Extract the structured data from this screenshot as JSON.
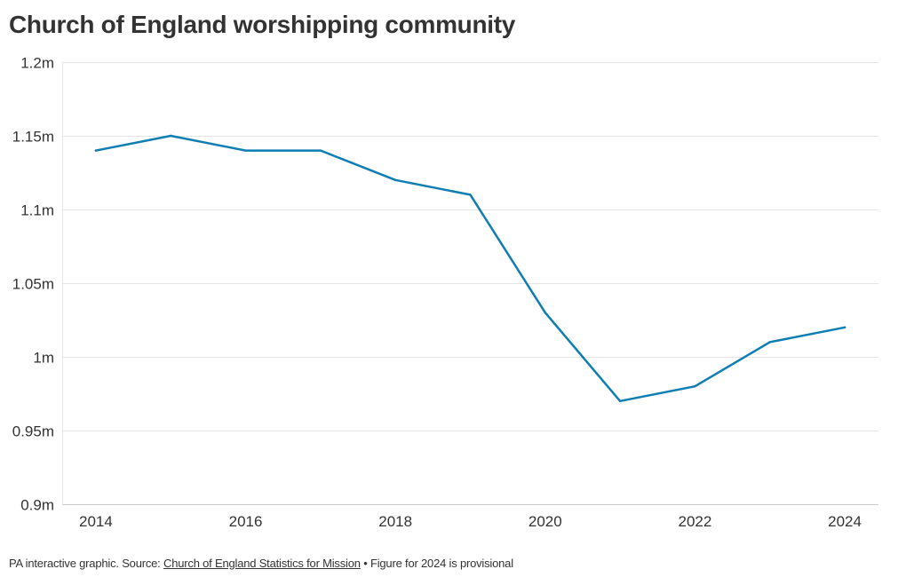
{
  "chart_data": {
    "type": "line",
    "title": "Church of England worshipping community",
    "xlabel": "",
    "ylabel": "",
    "x": [
      2014,
      2015,
      2016,
      2017,
      2018,
      2019,
      2020,
      2021,
      2022,
      2023,
      2024
    ],
    "series": [
      {
        "name": "Worshipping community",
        "values": [
          1.14,
          1.15,
          1.14,
          1.14,
          1.12,
          1.11,
          1.03,
          0.97,
          0.98,
          1.01,
          1.02
        ],
        "color": "#0f7eb3"
      }
    ],
    "xlim": [
      2013.55,
      2024.45
    ],
    "ylim": [
      0.9,
      1.2
    ],
    "x_ticks": [
      2014,
      2016,
      2018,
      2020,
      2022,
      2024
    ],
    "x_tick_labels": [
      "2014",
      "2016",
      "2018",
      "2020",
      "2022",
      "2024"
    ],
    "y_ticks": [
      0.9,
      0.95,
      1.0,
      1.05,
      1.1,
      1.15,
      1.2
    ],
    "y_tick_labels": [
      "0.9m",
      "0.95m",
      "1m",
      "1.05m",
      "1.1m",
      "1.15m",
      "1.2m"
    ],
    "grid": true,
    "legend": "none"
  },
  "footer": {
    "prefix": "PA interactive graphic. Source: ",
    "source_link": "Church of England Statistics for Mission",
    "suffix": " • Figure for 2024 is provisional"
  },
  "colors": {
    "line": "#0f7eb3",
    "grid": "#e6e6e6",
    "axis": "#cccccc",
    "text": "#333333"
  }
}
